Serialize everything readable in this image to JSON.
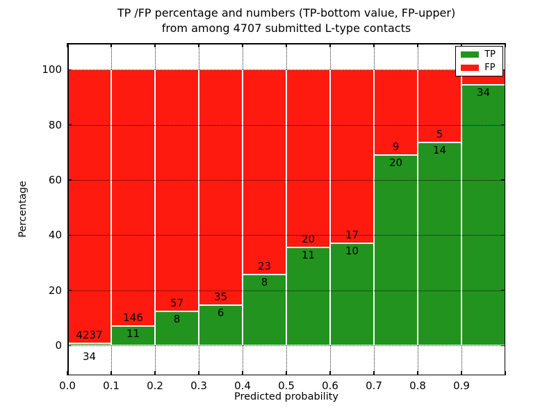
{
  "figure": {
    "title_line1": "TP /FP percentage and numbers (TP-bottom value, FP-upper)",
    "title_line2": "from among 4707 submitted L-type contacts"
  },
  "chart_data": {
    "type": "bar",
    "stacked": true,
    "title": "TP /FP percentage and numbers (TP-bottom value, FP-upper)\nfrom among 4707 submitted L-type contacts",
    "xlabel": "Predicted probability",
    "ylabel": "Percentage",
    "x_tick_labels": [
      "0.0",
      "0.1",
      "0.2",
      "0.3",
      "0.4",
      "0.5",
      "0.6",
      "0.7",
      "0.8",
      "0.9"
    ],
    "y_ticks": [
      0,
      20,
      40,
      60,
      80,
      100
    ],
    "xlim": [
      0.0,
      1.0
    ],
    "ylim": [
      -10.8,
      109.6
    ],
    "grid": true,
    "bin_width": 0.1,
    "categories": [
      "0.0-0.1",
      "0.1-0.2",
      "0.2-0.3",
      "0.3-0.4",
      "0.4-0.5",
      "0.5-0.6",
      "0.6-0.7",
      "0.7-0.8",
      "0.8-0.9",
      "0.9-1.0"
    ],
    "series": [
      {
        "name": "TP",
        "color": "#22931f",
        "counts": [
          34,
          11,
          8,
          6,
          8,
          11,
          10,
          20,
          14,
          34
        ],
        "percentages": [
          0.8,
          7.0,
          12.3,
          14.6,
          25.8,
          35.5,
          37.0,
          69.0,
          73.7,
          94.4
        ]
      },
      {
        "name": "FP",
        "color": "#ff1a10",
        "counts": [
          4237,
          146,
          57,
          35,
          23,
          20,
          17,
          9,
          5,
          null
        ],
        "percentages": [
          99.2,
          93.0,
          87.7,
          85.4,
          74.2,
          64.5,
          63.0,
          31.0,
          26.3,
          5.6
        ]
      }
    ],
    "legend": {
      "position": "upper right",
      "entries": [
        "TP",
        "FP"
      ]
    }
  }
}
